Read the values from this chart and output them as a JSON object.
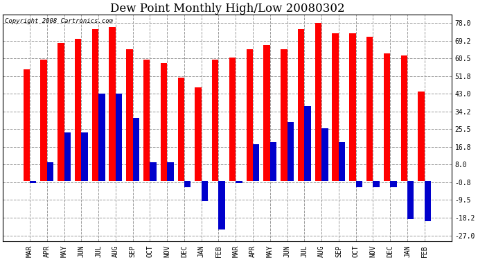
{
  "title": "Dew Point Monthly High/Low 20080302",
  "copyright": "Copyright 2008 Cartronics.com",
  "categories": [
    "MAR",
    "APR",
    "MAY",
    "JUN",
    "JUL",
    "AUG",
    "SEP",
    "OCT",
    "NOV",
    "DEC",
    "JAN",
    "FEB",
    "MAR",
    "APR",
    "MAY",
    "JUN",
    "JUL",
    "AUG",
    "SEP",
    "OCT",
    "NOV",
    "DEC",
    "JAN",
    "FEB"
  ],
  "highs": [
    55,
    60,
    68,
    70,
    75,
    76,
    65,
    60,
    58,
    51,
    46,
    60,
    61,
    65,
    67,
    65,
    75,
    78,
    73,
    73,
    71,
    63,
    62,
    44
  ],
  "lows": [
    -1,
    9,
    24,
    24,
    43,
    43,
    31,
    9,
    9,
    -3,
    -10,
    -24,
    -1,
    18,
    19,
    29,
    37,
    26,
    19,
    -3,
    -3,
    -3,
    -19,
    -20
  ],
  "high_color": "#ff0000",
  "low_color": "#0000cc",
  "background_color": "#ffffff",
  "plot_bg_color": "#ffffff",
  "grid_color": "#999999",
  "yticks": [
    -27.0,
    -18.2,
    -9.5,
    -0.8,
    8.0,
    16.8,
    25.5,
    34.2,
    43.0,
    51.8,
    60.5,
    69.2,
    78.0
  ],
  "ylim": [
    -30,
    82
  ],
  "bar_width": 0.38,
  "title_fontsize": 12,
  "tick_fontsize": 7,
  "ylabel_fontsize": 7,
  "copyright_fontsize": 6.5
}
